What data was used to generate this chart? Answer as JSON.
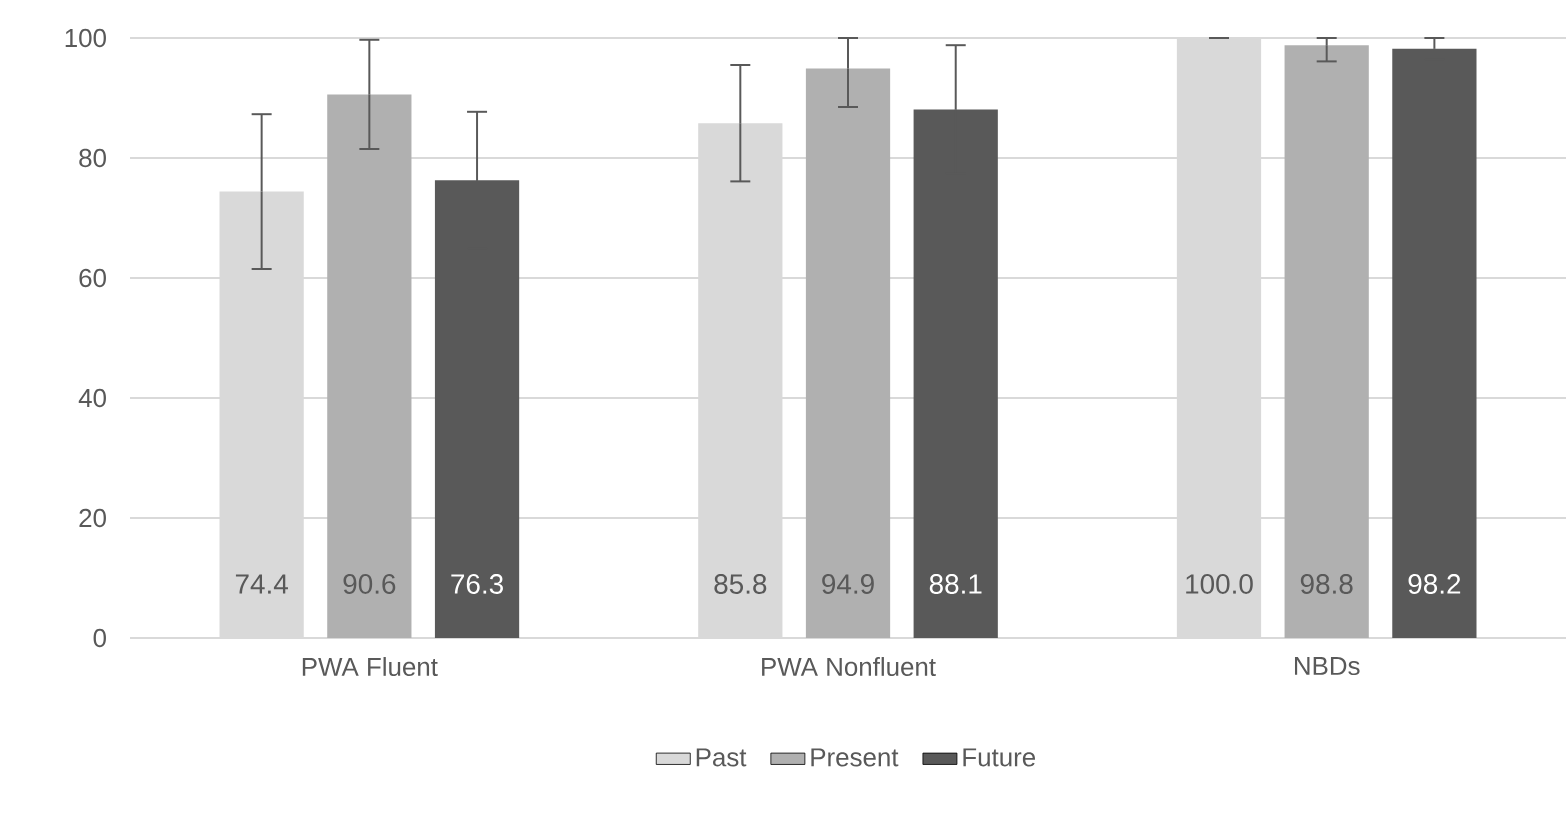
{
  "chart_data": {
    "type": "bar",
    "categories": [
      "PWA Fluent",
      "PWA Nonfluent",
      "NBDs"
    ],
    "series": [
      {
        "name": "Past",
        "color": "#d9d9d9",
        "values": [
          74.4,
          85.8,
          100.0
        ],
        "value_labels": [
          "74.4",
          "85.8",
          "100.0"
        ],
        "errors": [
          12.9,
          9.7,
          0
        ]
      },
      {
        "name": "Present",
        "color": "#b0b0b0",
        "values": [
          90.6,
          94.9,
          98.8
        ],
        "value_labels": [
          "90.6",
          "94.9",
          "98.8"
        ],
        "errors": [
          9.1,
          [
            88.5,
            100
          ],
          [
            96.1,
            100
          ]
        ]
      },
      {
        "name": "Future",
        "color": "#595959",
        "values": [
          76.3,
          88.1,
          98.2
        ],
        "value_labels": [
          "76.3",
          "88.1",
          "98.2"
        ],
        "errors": [
          11.4,
          10.7,
          1.8
        ]
      }
    ],
    "ylim": [
      0,
      100
    ],
    "yticks": [
      0,
      20,
      40,
      60,
      80,
      100
    ],
    "grid": "y",
    "legend": "bottom"
  }
}
